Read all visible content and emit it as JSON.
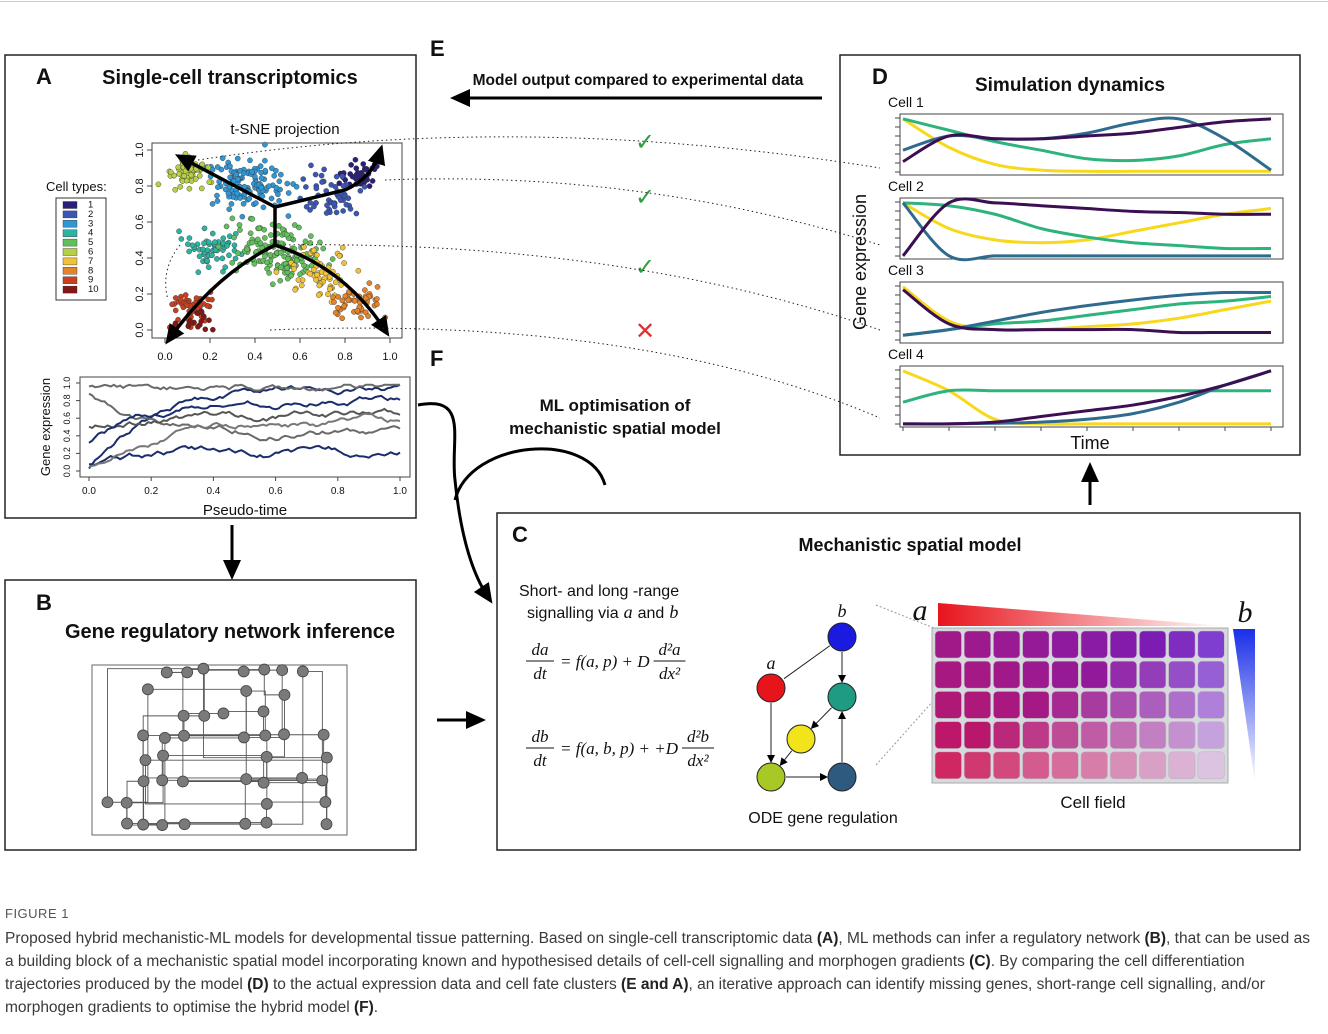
{
  "panel_a": {
    "label": "A",
    "title": "Single-cell transcriptomics",
    "tsne": {
      "title": "t-SNE projection",
      "xticks": [
        "0.0",
        "0.2",
        "0.4",
        "0.6",
        "0.8",
        "1.0"
      ],
      "yticks": [
        "0.0",
        "0.2",
        "0.4",
        "0.6",
        "0.8",
        "1.0"
      ],
      "legend_title": "Cell types:",
      "legend": [
        "1",
        "2",
        "3",
        "4",
        "5",
        "6",
        "7",
        "8",
        "9",
        "10"
      ]
    },
    "pseudotime": {
      "ylabel": "Gene expression",
      "xlabel": "Pseudo-time",
      "xticks": [
        "0.0",
        "0.2",
        "0.4",
        "0.6",
        "0.8",
        "1.0"
      ],
      "yticks": [
        "0.0",
        "0.2",
        "0.4",
        "0.6",
        "0.8",
        "1.0"
      ]
    }
  },
  "panel_b": {
    "label": "B",
    "title": "Gene regulatory network inference"
  },
  "panel_c": {
    "label": "C",
    "title": "Mechanistic spatial model",
    "intro": "Short- and long -range",
    "signalling": {
      "prefix": "signalling via",
      "var_a": "a",
      "middle": "and",
      "var_b": "b"
    },
    "equations": [
      {
        "num": "da",
        "den": "dt",
        "rhs": "= f(a, p) + D",
        "frac_num": "d²a",
        "frac_den": "dx²"
      },
      {
        "num": "db",
        "den": "dt",
        "rhs": "= f(a, b, p) + +D",
        "frac_num": "d²b",
        "frac_den": "dx²"
      }
    ],
    "node_a": "a",
    "node_b": "b",
    "ode_label": "ODE gene regulation",
    "field_a": "a",
    "field_b": "b",
    "field_label": "Cell field"
  },
  "panel_d": {
    "label": "D",
    "title": "Simulation dynamics",
    "ylabel": "Gene expression",
    "xlabel": "Time",
    "cells": [
      "Cell 1",
      "Cell 2",
      "Cell 3",
      "Cell 4"
    ]
  },
  "panel_e": {
    "label": "E",
    "text": "Model output compared to experimental data",
    "marks": [
      "✓",
      "✓",
      "✓",
      "✕"
    ]
  },
  "panel_f": {
    "label": "F",
    "lines": [
      "ML optimisation of",
      "mechanistic spatial model"
    ]
  },
  "caption": {
    "figure_label": "FIGURE 1",
    "segments": [
      {
        "text": "Proposed hybrid mechanistic-ML models for developmental tissue patterning. Based on single-cell transcriptomic data ",
        "bold": false
      },
      {
        "text": "(A)",
        "bold": true
      },
      {
        "text": ", ML methods can infer a regulatory network ",
        "bold": false
      },
      {
        "text": "(B)",
        "bold": true
      },
      {
        "text": ", that can be used as a building block of a mechanistic spatial model incorporating known and hypothesised details of cell-cell signalling and morphogen gradients ",
        "bold": false
      },
      {
        "text": "(C)",
        "bold": true
      },
      {
        "text": ". By comparing the cell differentiation trajectories produced by the model ",
        "bold": false
      },
      {
        "text": "(D)",
        "bold": true
      },
      {
        "text": " to the actual expression data and cell fate clusters ",
        "bold": false
      },
      {
        "text": "(E and A)",
        "bold": true
      },
      {
        "text": ", an iterative approach can identify missing genes, short-range cell signalling, and/or morphogen gradients to optimise the hybrid model ",
        "bold": false
      },
      {
        "text": "(F)",
        "bold": true
      },
      {
        "text": ".",
        "bold": false
      }
    ]
  }
}
